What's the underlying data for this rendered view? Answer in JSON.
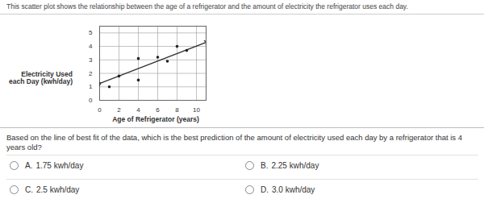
{
  "header": {
    "text": "This scatter plot shows the relationship between the age of a refrigerator and the amount of electricity the refrigerator uses each day."
  },
  "chart_data": {
    "type": "scatter",
    "x_label": "Age of Refrigerator (years)",
    "y_label": [
      "Electricity Used",
      "each Day (kwh/day)"
    ],
    "x": [
      1,
      2,
      4,
      4,
      6,
      7,
      8,
      9
    ],
    "values": [
      1.0,
      1.8,
      1.5,
      3.1,
      3.2,
      2.9,
      4.0,
      3.7
    ],
    "color": "#222222",
    "best_fit": {
      "x": [
        0,
        11
      ],
      "y": [
        1.25,
        4.3
      ],
      "color": "#333333"
    },
    "xlim": [
      0,
      11
    ],
    "ylim": [
      0,
      5.5
    ],
    "xticks": [
      0,
      2,
      4,
      6,
      8,
      10
    ],
    "yticks": [
      0,
      1,
      2,
      3,
      4,
      5
    ],
    "grid": true
  },
  "question": {
    "text": "Based on the line of best fit of the data, which is the best prediction of the amount of electricity used each day by a refrigerator that is 4 years old?",
    "options": [
      {
        "letter": "A.",
        "text": "1.75 kwh/day"
      },
      {
        "letter": "B.",
        "text": "2.25 kwh/day"
      },
      {
        "letter": "C.",
        "text": "2.5 kwh/day"
      },
      {
        "letter": "D.",
        "text": "3.0 kwh/day"
      }
    ]
  }
}
